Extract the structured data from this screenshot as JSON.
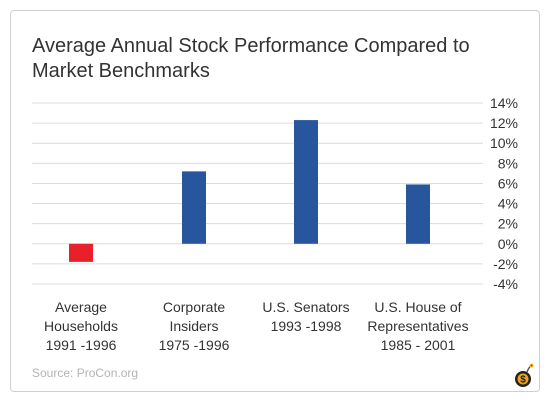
{
  "chart_data": {
    "type": "bar",
    "title": "Average Annual Stock Performance Compared to Market Benchmarks",
    "categories": [
      [
        "Average",
        "Households",
        "1991 -1996"
      ],
      [
        "Corporate",
        "Insiders",
        "1975 -1996"
      ],
      [
        "U.S. Senators",
        "1993 -1998"
      ],
      [
        "U.S. House of",
        "Representatives",
        "1985 - 2001"
      ]
    ],
    "values": [
      -1.8,
      7.2,
      12.3,
      5.9
    ],
    "colors": [
      "#e8202a",
      "#27569c",
      "#27569c",
      "#27569c"
    ],
    "ylim": [
      -4,
      14
    ],
    "yticks": [
      14,
      12,
      10,
      8,
      6,
      4,
      2,
      0,
      -2,
      -4
    ],
    "ytick_labels": [
      "14%",
      "12%",
      "10%",
      "8%",
      "6%",
      "4%",
      "2%",
      "0%",
      "-2%",
      "-4%"
    ],
    "grid": true,
    "y_axis_position": "right"
  },
  "source": "Source: ProCon.org",
  "logo_icon": "bomb-icon"
}
